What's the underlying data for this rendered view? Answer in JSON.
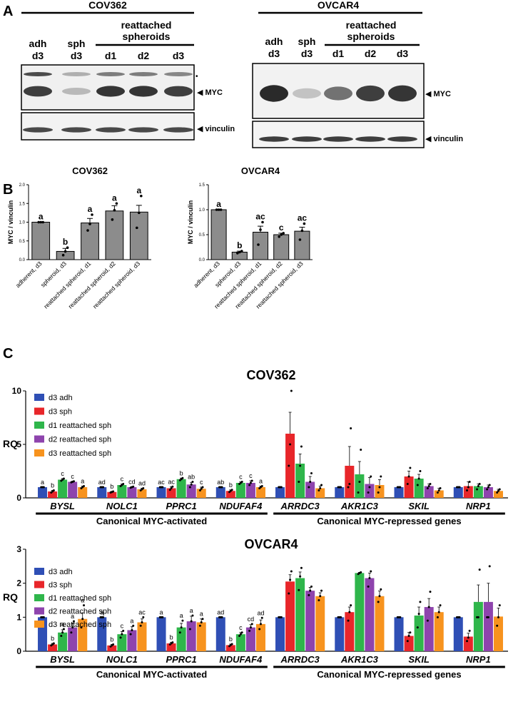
{
  "panel_letters": {
    "a": "A",
    "b": "B",
    "c": "C"
  },
  "blots": [
    {
      "cell_line": "COV362",
      "lanes": [
        {
          "label": [
            "adh",
            "d3"
          ]
        },
        {
          "label": [
            "sph",
            "d3"
          ]
        },
        {
          "label": [
            "d1"
          ]
        },
        {
          "label": [
            "d2"
          ]
        },
        {
          "label": [
            "d3"
          ]
        }
      ],
      "group_label": [
        "reattached",
        "spheroids"
      ],
      "bands": [
        {
          "label": "MYC",
          "marker": "◂",
          "intensity": [
            0.85,
            0.25,
            0.9,
            0.9,
            0.85
          ]
        },
        {
          "label": "vinculin",
          "intensity": [
            0.8,
            0.8,
            0.8,
            0.8,
            0.8
          ]
        }
      ],
      "nonspecific_marker": "•"
    },
    {
      "cell_line": "OVCAR4",
      "lanes": [
        {
          "label": [
            "adh",
            "d3"
          ]
        },
        {
          "label": [
            "sph",
            "d3"
          ]
        },
        {
          "label": [
            "d1"
          ]
        },
        {
          "label": [
            "d2"
          ]
        },
        {
          "label": [
            "d3"
          ]
        }
      ],
      "group_label": [
        "reattached",
        "spheroids"
      ],
      "bands": [
        {
          "label": "MYC",
          "intensity": [
            0.95,
            0.2,
            0.6,
            0.85,
            0.9
          ]
        },
        {
          "label": "vinculin",
          "intensity": [
            0.85,
            0.85,
            0.85,
            0.85,
            0.85
          ]
        }
      ]
    }
  ],
  "chart_data": [
    {
      "type": "bar",
      "title": "COV362",
      "ylabel": "MYC / vinculin",
      "ylim": [
        0,
        2.0
      ],
      "yticks": [
        "0.0",
        "0.5",
        "1.0",
        "1.5",
        "2.0"
      ],
      "categories": [
        "adherent, d3",
        "spheroid, d3",
        "reattached spheroid, d1",
        "reattached spheroid, d2",
        "reattached spheroid, d3"
      ],
      "values": [
        1.0,
        0.22,
        0.98,
        1.3,
        1.27
      ],
      "errors": [
        0.0,
        0.08,
        0.12,
        0.14,
        0.18
      ],
      "points": [
        [
          1.0,
          1.0,
          1.0
        ],
        [
          0.12,
          0.22,
          0.32
        ],
        [
          0.78,
          0.95,
          1.2
        ],
        [
          1.07,
          1.32,
          1.5
        ],
        [
          0.85,
          1.25,
          1.7
        ]
      ],
      "letters": [
        "a",
        "b",
        "a",
        "a",
        "a"
      ]
    },
    {
      "type": "bar",
      "title": "OVCAR4",
      "ylabel": "MYC / vinculin",
      "ylim": [
        0,
        1.5
      ],
      "yticks": [
        "0.0",
        "0.5",
        "1.0",
        "1.5"
      ],
      "categories": [
        "adherent, d3",
        "spheroid, d3",
        "reattached spheroid, d1",
        "reattached spheroid, d2",
        "reattached spheroid, d3"
      ],
      "values": [
        1.0,
        0.15,
        0.55,
        0.5,
        0.57
      ],
      "errors": [
        0.0,
        0.02,
        0.12,
        0.03,
        0.08
      ],
      "points": [
        [
          1.0,
          1.0,
          1.0
        ],
        [
          0.13,
          0.15,
          0.17
        ],
        [
          0.3,
          0.6,
          0.75
        ],
        [
          0.46,
          0.5,
          0.53
        ],
        [
          0.4,
          0.58,
          0.72
        ]
      ],
      "letters": [
        "a",
        "b",
        "ac",
        "c",
        "ac"
      ]
    },
    {
      "type": "bar",
      "title": "COV362",
      "ylabel": "RQ",
      "ylim": [
        0,
        10
      ],
      "yticks": [
        "0",
        "5",
        "10"
      ],
      "categories": [
        "BYSL",
        "NOLC1",
        "PPRC1",
        "NDUFAF4",
        "ARRDC3",
        "AKR1C3",
        "SKIL",
        "NRP1"
      ],
      "group_labels": [
        "Canonical MYC-activated",
        "Canonical MYC-repressed genes"
      ],
      "legend_position": "top-left",
      "series": [
        {
          "name": "d3 adh",
          "color": "#2f4fb5",
          "values": [
            1,
            1,
            1,
            1,
            1,
            1,
            1,
            1
          ],
          "errors": [
            0,
            0,
            0,
            0,
            0,
            0,
            0,
            0
          ],
          "letters": [
            "a",
            "ad",
            "ac",
            "ab",
            "",
            "",
            "",
            ""
          ],
          "points": [
            [
              1,
              1,
              1
            ],
            [
              1,
              1,
              1
            ],
            [
              1,
              1,
              1
            ],
            [
              1,
              1,
              1
            ],
            [
              1,
              1,
              1
            ],
            [
              1,
              1,
              1
            ],
            [
              1,
              1,
              1
            ],
            [
              1,
              1,
              1
            ]
          ]
        },
        {
          "name": "d3 sph",
          "color": "#e8262a",
          "values": [
            0.6,
            0.55,
            0.9,
            0.65,
            6.0,
            3.0,
            2.0,
            1.1
          ],
          "errors": [
            0.1,
            0.05,
            0.15,
            0.1,
            2.0,
            1.8,
            0.5,
            0.4
          ],
          "letters": [
            "b",
            "b",
            "ac",
            "b",
            "",
            "",
            "",
            ""
          ],
          "points": [
            [
              0.5,
              0.6,
              0.7
            ],
            [
              0.5,
              0.55,
              0.6
            ],
            [
              0.75,
              0.9,
              1.05
            ],
            [
              0.55,
              0.65,
              0.75
            ],
            [
              3.0,
              5.0,
              10.0
            ],
            [
              1.0,
              1.3,
              6.5
            ],
            [
              1.3,
              2.0,
              2.8
            ],
            [
              0.7,
              1.0,
              1.5
            ]
          ]
        },
        {
          "name": "d1 reattached sph",
          "color": "#2fb64b",
          "values": [
            1.7,
            1.2,
            1.75,
            1.4,
            3.2,
            2.2,
            1.8,
            1.1
          ],
          "errors": [
            0.1,
            0.1,
            0.1,
            0.1,
            0.9,
            1.2,
            0.4,
            0.2
          ],
          "letters": [
            "c",
            "c",
            "b",
            "c",
            "",
            "",
            "",
            ""
          ],
          "points": [
            [
              1.6,
              1.7,
              1.8
            ],
            [
              1.1,
              1.2,
              1.3
            ],
            [
              1.65,
              1.75,
              1.85
            ],
            [
              1.3,
              1.4,
              1.5
            ],
            [
              1.5,
              3.0,
              4.8
            ],
            [
              0.5,
              1.5,
              4.5
            ],
            [
              1.2,
              1.8,
              2.5
            ],
            [
              0.8,
              1.1,
              1.3
            ]
          ]
        },
        {
          "name": "d2 reattached sph",
          "color": "#8e44ad",
          "values": [
            1.5,
            1.0,
            1.25,
            1.4,
            1.5,
            1.3,
            1.1,
            1.0
          ],
          "errors": [
            0.05,
            0.05,
            0.2,
            0.2,
            0.5,
            0.6,
            0.2,
            0.2
          ],
          "letters": [
            "c",
            "cd",
            "ab",
            "c",
            "",
            "",
            "",
            ""
          ],
          "points": [
            [
              1.45,
              1.5,
              1.55
            ],
            [
              0.95,
              1.0,
              1.05
            ],
            [
              1.0,
              1.25,
              1.5
            ],
            [
              1.2,
              1.4,
              1.6
            ],
            [
              1.0,
              1.5,
              2.3
            ],
            [
              0.5,
              1.0,
              2.0
            ],
            [
              0.9,
              1.1,
              1.3
            ],
            [
              0.8,
              1.0,
              1.2
            ]
          ]
        },
        {
          "name": "d3 reattached sph",
          "color": "#f7931e",
          "values": [
            1.0,
            0.8,
            0.85,
            1.0,
            0.9,
            1.2,
            0.7,
            0.65
          ],
          "errors": [
            0.1,
            0.1,
            0.15,
            0.1,
            0.2,
            0.5,
            0.2,
            0.15
          ],
          "letters": [
            "a",
            "ad",
            "c",
            "a",
            "",
            "",
            "",
            ""
          ],
          "points": [
            [
              0.9,
              1.0,
              1.1
            ],
            [
              0.7,
              0.8,
              0.9
            ],
            [
              0.7,
              0.85,
              1.0
            ],
            [
              0.9,
              1.0,
              1.1
            ],
            [
              0.7,
              0.9,
              1.2
            ],
            [
              0.5,
              1.0,
              2.0
            ],
            [
              0.5,
              0.7,
              0.9
            ],
            [
              0.5,
              0.65,
              0.8
            ]
          ]
        }
      ]
    },
    {
      "type": "bar",
      "title": "OVCAR4",
      "ylabel": "RQ",
      "ylim": [
        0,
        3
      ],
      "yticks": [
        "0",
        "1",
        "2",
        "3"
      ],
      "categories": [
        "BYSL",
        "NOLC1",
        "PPRC1",
        "NDUFAF4",
        "ARRDC3",
        "AKR1C3",
        "SKIL",
        "NRP1"
      ],
      "group_labels": [
        "Canonical MYC-activated",
        "Canonical MYC-repressed genes"
      ],
      "legend_position": "top-left",
      "series": [
        {
          "name": "d3 adh",
          "color": "#2f4fb5",
          "values": [
            1,
            1,
            1,
            1,
            1,
            1,
            1,
            1
          ],
          "errors": [
            0,
            0,
            0,
            0,
            0,
            0,
            0,
            0
          ],
          "letters": [
            "a",
            "a",
            "a",
            "ad",
            "",
            "",
            "",
            ""
          ],
          "points": [
            [
              1,
              1,
              1
            ],
            [
              1,
              1,
              1
            ],
            [
              1,
              1,
              1
            ],
            [
              1,
              1,
              1
            ],
            [
              1,
              1,
              1
            ],
            [
              1,
              1,
              1
            ],
            [
              1,
              1,
              1
            ],
            [
              1,
              1,
              1
            ]
          ]
        },
        {
          "name": "d3 sph",
          "color": "#e8262a",
          "values": [
            0.2,
            0.17,
            0.23,
            0.18,
            2.05,
            1.15,
            0.45,
            0.43
          ],
          "errors": [
            0.03,
            0.03,
            0.03,
            0.03,
            0.2,
            0.15,
            0.1,
            0.1
          ],
          "letters": [
            "b",
            "b",
            "b",
            "b",
            "",
            "",
            "",
            ""
          ],
          "points": [
            [
              0.17,
              0.2,
              0.23
            ],
            [
              0.14,
              0.17,
              0.2
            ],
            [
              0.2,
              0.23,
              0.26
            ],
            [
              0.15,
              0.18,
              0.21
            ],
            [
              1.7,
              2.1,
              2.35
            ],
            [
              0.9,
              1.15,
              1.35
            ],
            [
              0.3,
              0.45,
              0.55
            ],
            [
              0.3,
              0.4,
              0.6
            ]
          ]
        },
        {
          "name": "d1 reattached sph",
          "color": "#2fb64b",
          "values": [
            0.55,
            0.5,
            0.7,
            0.5,
            2.15,
            2.3,
            1.05,
            1.45
          ],
          "errors": [
            0.08,
            0.08,
            0.12,
            0.05,
            0.18,
            0.02,
            0.25,
            0.5
          ],
          "letters": [
            "a",
            "c",
            "a",
            "c",
            "",
            "",
            "",
            ""
          ],
          "points": [
            [
              0.45,
              0.55,
              0.65
            ],
            [
              0.4,
              0.5,
              0.6
            ],
            [
              0.55,
              0.7,
              0.9
            ],
            [
              0.45,
              0.5,
              0.55
            ],
            [
              1.8,
              2.2,
              2.45
            ],
            [
              2.27,
              2.3,
              2.32
            ],
            [
              0.7,
              1.1,
              1.45
            ],
            [
              1.0,
              1.0,
              2.4
            ]
          ]
        },
        {
          "name": "d2 reattached sph",
          "color": "#8e44ad",
          "values": [
            0.7,
            0.62,
            0.88,
            0.7,
            1.78,
            2.15,
            1.3,
            1.45
          ],
          "errors": [
            0.12,
            0.1,
            0.15,
            0.08,
            0.1,
            0.15,
            0.25,
            0.55
          ],
          "letters": [
            "a",
            "a",
            "a",
            "cd",
            "",
            "",
            "",
            ""
          ],
          "points": [
            [
              0.55,
              0.7,
              0.88
            ],
            [
              0.5,
              0.62,
              0.75
            ],
            [
              0.65,
              0.88,
              1.05
            ],
            [
              0.6,
              0.7,
              0.8
            ],
            [
              1.65,
              1.78,
              1.9
            ],
            [
              1.9,
              2.15,
              2.35
            ],
            [
              0.9,
              1.3,
              1.75
            ],
            [
              1.0,
              1.0,
              2.5
            ]
          ]
        },
        {
          "name": "d3 reattached sph",
          "color": "#f7931e",
          "values": [
            0.95,
            0.85,
            0.85,
            0.8,
            1.62,
            1.62,
            1.15,
            1.02
          ],
          "errors": [
            0.18,
            0.1,
            0.1,
            0.12,
            0.1,
            0.15,
            0.15,
            0.25
          ],
          "letters": [
            "a",
            "ac",
            "a",
            "ad",
            "",
            "",
            "",
            ""
          ],
          "points": [
            [
              0.7,
              0.95,
              1.35
            ],
            [
              0.75,
              0.85,
              1.0
            ],
            [
              0.75,
              0.85,
              0.95
            ],
            [
              0.65,
              0.8,
              0.98
            ],
            [
              1.5,
              1.62,
              1.78
            ],
            [
              1.45,
              1.62,
              1.82
            ],
            [
              1.0,
              1.15,
              1.35
            ],
            [
              0.75,
              1.0,
              1.35
            ]
          ]
        }
      ]
    }
  ]
}
